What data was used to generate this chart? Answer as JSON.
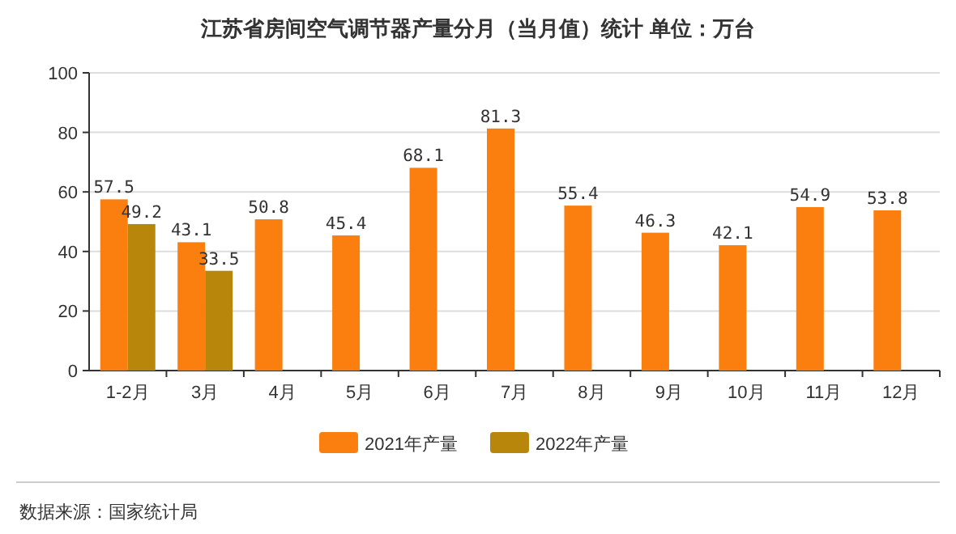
{
  "chart_data": {
    "type": "bar",
    "title": "江苏省房间空气调节器产量分月（当月值）统计  单位：万台",
    "categories": [
      "1-2月",
      "3月",
      "4月",
      "5月",
      "6月",
      "7月",
      "8月",
      "9月",
      "10月",
      "11月",
      "12月"
    ],
    "series": [
      {
        "name": "2021年产量",
        "color": "#fb7f0f",
        "values": [
          57.5,
          43.1,
          50.8,
          45.4,
          68.1,
          81.3,
          55.4,
          46.3,
          42.1,
          54.9,
          53.8
        ]
      },
      {
        "name": "2022年产量",
        "color": "#b8860b",
        "values": [
          49.2,
          33.5,
          null,
          null,
          null,
          null,
          null,
          null,
          null,
          null,
          null
        ]
      }
    ],
    "ylim": [
      0,
      100
    ],
    "yticks": [
      0,
      20,
      40,
      60,
      80,
      100
    ],
    "grid": "y",
    "legend": "bottom",
    "data_labels": true,
    "annotations": [
      "数据来源：国家统计局"
    ]
  }
}
